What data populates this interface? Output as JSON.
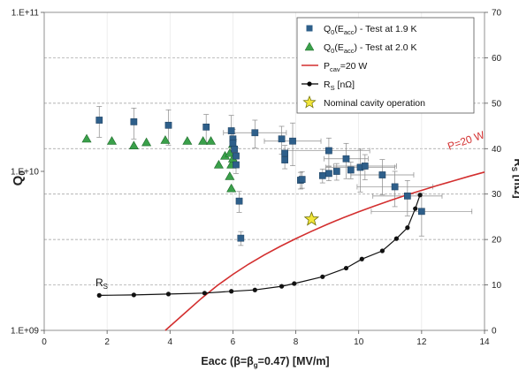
{
  "chart_data": {
    "type": "scatter",
    "xlabel": "Eacc (β=β",
    "xlabel_sub": "g",
    "xlabel_rest": "=0.47) [MV/m]",
    "ylabel_left": "Q",
    "ylabel_left_sub": "0",
    "ylabel_right": "R",
    "ylabel_right_sub": "S",
    "ylabel_right_rest": " [nΩ]",
    "xlim": [
      0,
      14
    ],
    "ylim_left": [
      1000000000,
      100000000000
    ],
    "yscale_left": "log",
    "ylim_right": [
      0,
      70
    ],
    "grid": true,
    "legend_position": "top-right",
    "x_ticks": [
      "0",
      "2",
      "4",
      "6",
      "8",
      "10",
      "12",
      "14"
    ],
    "y_left_ticks": [
      "1.E+09",
      "1.E+10",
      "1.E+11"
    ],
    "y_right_ticks": [
      "0",
      "10",
      "20",
      "30",
      "40",
      "50",
      "60",
      "70"
    ],
    "legend": [
      {
        "pre": "Q",
        "sub": "0",
        "mid": "(E",
        "sub2": "acc",
        "post": ") - Test at 1.9 K",
        "marker": "square",
        "color": "#2e5f8a"
      },
      {
        "pre": "Q",
        "sub": "0",
        "mid": "(E",
        "sub2": "acc",
        "post": ") - Test at 2.0 K",
        "marker": "triangle",
        "color": "#3aa04a"
      },
      {
        "pre": "P",
        "sub": "cav",
        "mid": "=20 W",
        "sub2": "",
        "post": "",
        "marker": "line",
        "color": "#d32f2f"
      },
      {
        "pre": "R",
        "sub": "S",
        "mid": " [nΩ]",
        "sub2": "",
        "post": "",
        "marker": "dotline",
        "color": "#000000"
      },
      {
        "pre": "Nominal cavity operation",
        "sub": "",
        "mid": "",
        "sub2": "",
        "post": "",
        "marker": "star",
        "color": "#f2e63a"
      }
    ],
    "annotations": {
      "power_curve_label": "P=20 W",
      "rs_label_main": "R",
      "rs_label_sub": "S"
    },
    "series": [
      {
        "name": "Q0(Eacc) - Test at 1.9 K",
        "axis": "left",
        "x": [
          1.75,
          2.85,
          3.95,
          5.15,
          5.95,
          6.0,
          6.0,
          6.05,
          6.1,
          6.1,
          6.2,
          6.25,
          6.7,
          7.55,
          7.65,
          7.65,
          7.9,
          8.15,
          8.2,
          8.85,
          9.05,
          9.05,
          9.3,
          9.6,
          9.75,
          10.05,
          10.2,
          10.75,
          11.15,
          11.55,
          12.0
        ],
        "y": [
          21000000000.0,
          20500000000.0,
          19500000000.0,
          19000000000.0,
          18000000000.0,
          16000000000.0,
          15000000000.0,
          13800000000.0,
          12500000000.0,
          11000000000.0,
          6500000000.0,
          3800000000.0,
          17500000000.0,
          16000000000.0,
          13000000000.0,
          11800000000.0,
          15500000000.0,
          8800000000.0,
          8900000000.0,
          9400000000.0,
          13500000000.0,
          9700000000.0,
          10000000000.0,
          12000000000.0,
          10200000000.0,
          10600000000.0,
          10800000000.0,
          9500000000.0,
          8000000000.0,
          7000000000.0,
          5600000000.0
        ],
        "x_err": [
          0.05,
          0.05,
          0.05,
          0.05,
          0.05,
          0.05,
          0.05,
          0.05,
          0.05,
          0.05,
          0.05,
          0.05,
          1.0,
          0.05,
          0.05,
          0.05,
          0.9,
          0.05,
          0.05,
          0.05,
          1.3,
          0.05,
          0.05,
          0.7,
          0.05,
          1.1,
          1.0,
          1.0,
          1.2,
          1.1,
          1.6
        ],
        "y_err_frac": [
          0.22,
          0.22,
          0.25,
          0.2,
          0.25,
          0.15,
          0.15,
          0.15,
          0.12,
          0.12,
          0.15,
          0.1,
          0.2,
          0.2,
          0.12,
          0.12,
          0.3,
          0.12,
          0.12,
          0.1,
          0.2,
          0.1,
          0.12,
          0.25,
          0.12,
          0.3,
          0.18,
          0.25,
          0.25,
          0.25,
          0.3
        ]
      },
      {
        "name": "Q0(Eacc) - Test at 2.0 K",
        "axis": "left",
        "x": [
          1.35,
          2.15,
          2.85,
          3.25,
          3.85,
          4.55,
          5.05,
          5.3,
          5.55,
          5.75,
          5.9,
          5.9,
          5.95,
          5.95,
          6.0,
          6.0
        ],
        "y": [
          16000000000.0,
          15500000000.0,
          14500000000.0,
          15200000000.0,
          15700000000.0,
          15500000000.0,
          15500000000.0,
          15500000000.0,
          11000000000.0,
          12500000000.0,
          13000000000.0,
          9300000000.0,
          11000000000.0,
          7800000000.0,
          12000000000.0,
          14800000000.0
        ]
      },
      {
        "name": "Pcav=20 W",
        "axis": "left",
        "x": [
          3.85,
          4.5,
          5.0,
          5.5,
          6.0,
          6.5,
          7.0,
          7.5,
          8.0,
          8.5,
          9.0,
          9.5,
          10.0,
          10.5,
          11.0,
          11.5,
          12.0,
          12.5,
          13.0,
          13.5,
          14.0
        ],
        "y": [
          1000000000.0,
          1300000000.0,
          1590000000.0,
          1910000000.0,
          2250000000.0,
          2610000000.0,
          2980000000.0,
          3370000000.0,
          3780000000.0,
          4200000000.0,
          4640000000.0,
          5100000000.0,
          5570000000.0,
          6060000000.0,
          6560000000.0,
          7080000000.0,
          7600000000.0,
          8150000000.0,
          8700000000.0,
          9300000000.0,
          9900000000.0
        ]
      },
      {
        "name": "Rs [nΩ]",
        "axis": "right",
        "x": [
          1.75,
          2.85,
          3.95,
          5.1,
          5.95,
          6.7,
          7.55,
          7.95,
          8.85,
          9.6,
          10.1,
          10.75,
          11.2,
          11.55,
          11.8,
          11.95
        ],
        "y": [
          7.7,
          7.8,
          8.0,
          8.2,
          8.6,
          8.9,
          9.7,
          10.3,
          11.8,
          13.7,
          15.7,
          17.5,
          20.2,
          22.6,
          26.8,
          29.8
        ]
      },
      {
        "name": "Nominal cavity operation",
        "axis": "left",
        "x": [
          8.5
        ],
        "y": [
          5000000000.0
        ]
      }
    ]
  }
}
